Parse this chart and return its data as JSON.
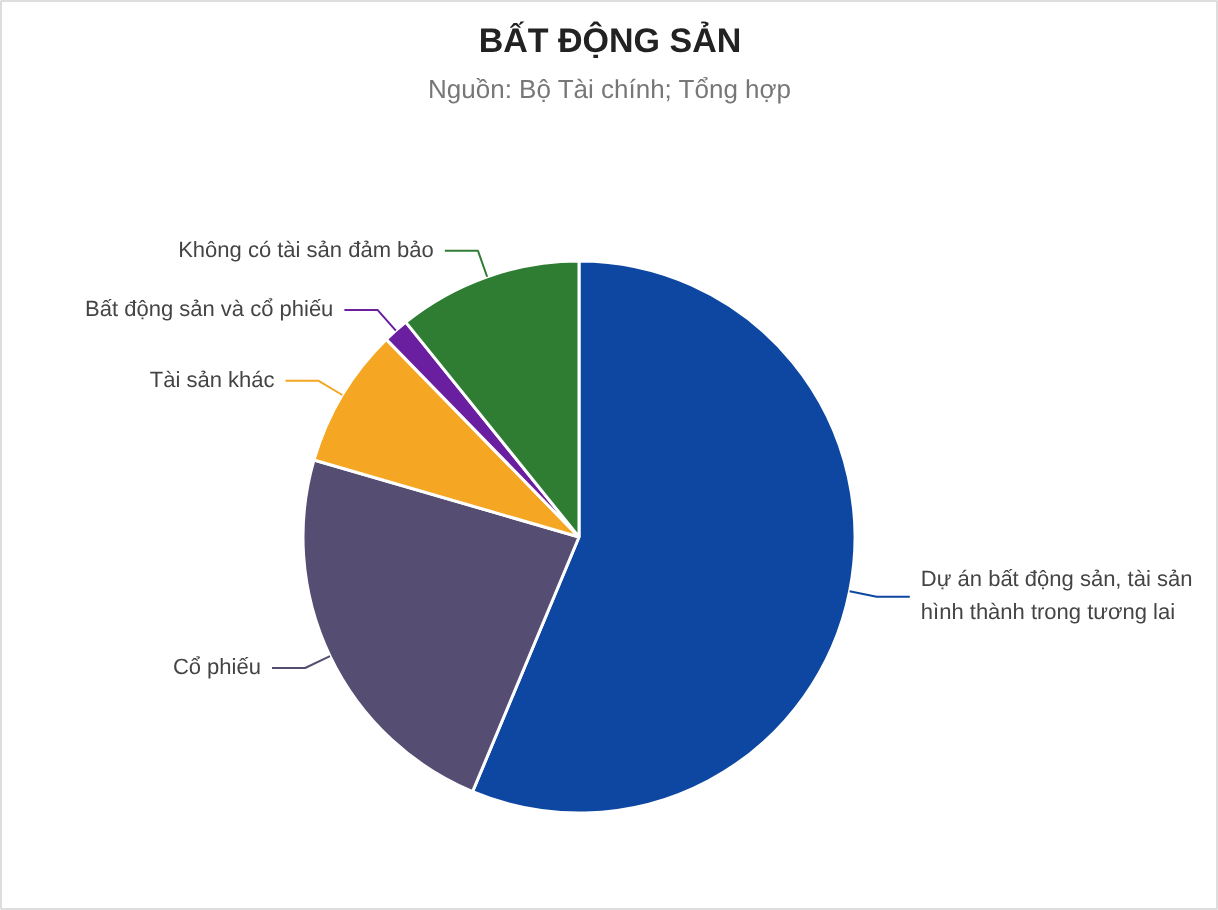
{
  "chart_data": {
    "type": "pie",
    "title": "BẤT ĐỘNG SẢN",
    "subtitle": "Nguồn: Bộ Tài chính; Tổng hợp",
    "categories": [
      "Dự án bất động sản, tài sản hình thành trong tương lai",
      "Cổ phiếu",
      "Tài sản khác",
      "Bất động sản và cổ phiếu",
      "Không có tài sản đảm bảo"
    ],
    "values": [
      56.3,
      23.2,
      8.2,
      1.5,
      10.8
    ],
    "colors": [
      "#0d47a1",
      "#554e72",
      "#f5a623",
      "#6a1fa0",
      "#2e7d32"
    ]
  }
}
